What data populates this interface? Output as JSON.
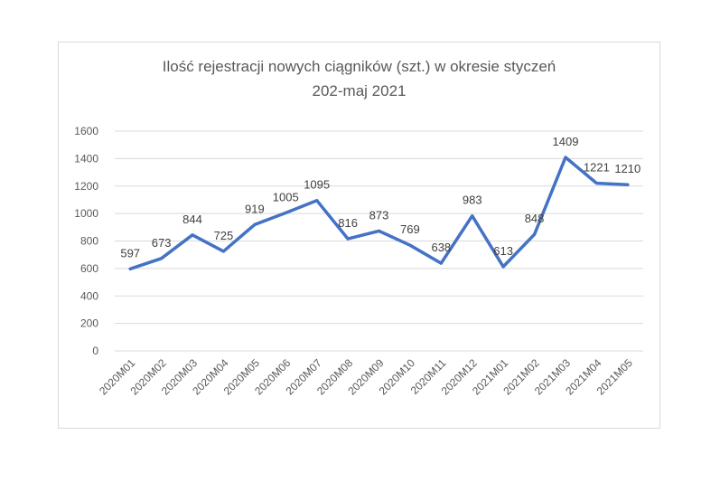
{
  "chart_data": {
    "type": "line",
    "title_line1": "Ilość rejestracji nowych ciągników (szt.) w okresie styczeń",
    "title_line2": "202-maj 2021",
    "xlabel": "",
    "ylabel": "",
    "categories": [
      "2020M01",
      "2020M02",
      "2020M03",
      "2020M04",
      "2020M05",
      "2020M06",
      "2020M07",
      "2020M08",
      "2020M09",
      "2020M10",
      "2020M11",
      "2020M12",
      "2021M01",
      "2021M02",
      "2021M03",
      "2021M04",
      "2021M05"
    ],
    "values": [
      597,
      673,
      844,
      725,
      919,
      1005,
      1095,
      816,
      873,
      769,
      638,
      983,
      613,
      848,
      1409,
      1221,
      1210
    ],
    "data_labels": [
      "597",
      "673",
      "844",
      "725",
      "919",
      "1005",
      "1095",
      "816",
      "873",
      "769",
      "638",
      "983",
      "613",
      "848",
      "1409",
      "1221",
      "1210"
    ],
    "ylim": [
      0,
      1600
    ],
    "yticks": [
      "0",
      "200",
      "400",
      "600",
      "800",
      "1000",
      "1200",
      "1400",
      "1600"
    ],
    "grid": "horizontal",
    "legend": "none",
    "line_color": "#4472C4",
    "grid_color": "#d9d9d9"
  }
}
